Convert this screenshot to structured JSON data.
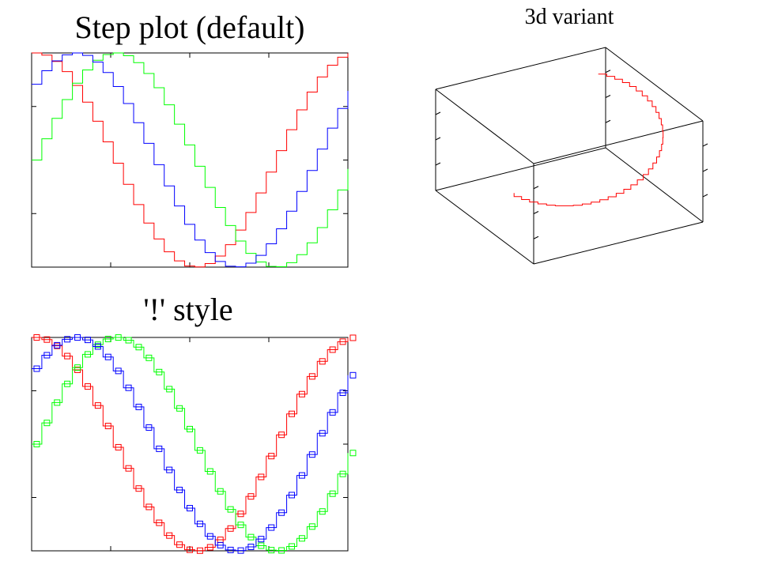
{
  "chart_data": [
    {
      "id": "step-default",
      "type": "line",
      "style": "step",
      "title": "Step plot (default)",
      "xlim": [
        0,
        6.2
      ],
      "ylim": [
        -1,
        1
      ],
      "x": "0 to 6.2 step 0.2 (32 steps)",
      "series": [
        {
          "color": "#ff0000",
          "function": "cos(x)"
        },
        {
          "color": "#00ff00",
          "function": "sin(x)"
        },
        {
          "color": "#0000ff",
          "function": "sin(x)+cos(x)"
        }
      ],
      "x_ticks": 4,
      "y_ticks": 4,
      "grid": false
    },
    {
      "id": "step-bang",
      "type": "line",
      "style": "step-with-square-markers",
      "title": "'!' style",
      "xlim": [
        0,
        6.2
      ],
      "ylim": [
        -1,
        1
      ],
      "series": [
        {
          "color": "#ff0000"
        },
        {
          "color": "#00ff00"
        },
        {
          "color": "#0000ff"
        }
      ],
      "grid": false
    },
    {
      "id": "step-3d",
      "type": "line",
      "style": "3d-step",
      "title": "3d variant",
      "series": [
        {
          "color": "#ff0000",
          "shape": "half-ellipse in horizontal plane"
        }
      ],
      "grid": false
    }
  ]
}
